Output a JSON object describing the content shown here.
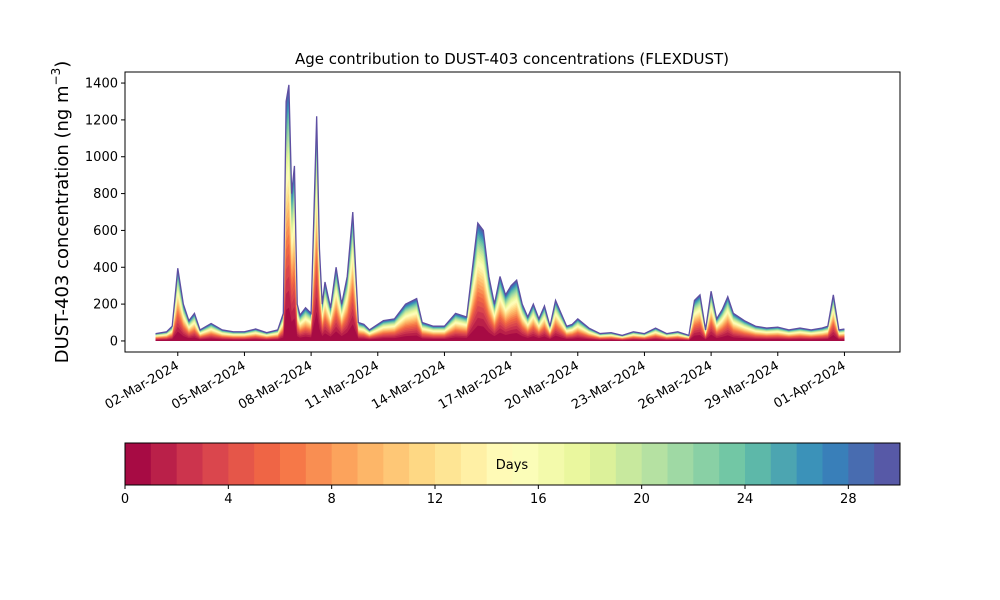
{
  "chart_data": {
    "type": "area",
    "title": "Age contribution to DUST-403 concentrations (FLEXDUST)",
    "ylabel": "DUST-403 concentration (ng m",
    "ylabel_sup": "−3",
    "ylabel_close": ")",
    "xlabel": "",
    "ylim": [
      -60,
      1460
    ],
    "xlim": [
      "2024-02-28T15:00",
      "2024-04-03T12:00"
    ],
    "y_ticks": [
      0,
      200,
      400,
      600,
      800,
      1000,
      1200,
      1400
    ],
    "x_ticks": [
      "2024-03-02",
      "2024-03-05",
      "2024-03-08",
      "2024-03-11",
      "2024-03-14",
      "2024-03-17",
      "2024-03-20",
      "2024-03-23",
      "2024-03-26",
      "2024-03-29",
      "2024-04-01"
    ],
    "x_tick_labels": [
      "02-Mar-2024",
      "05-Mar-2024",
      "08-Mar-2024",
      "11-Mar-2024",
      "14-Mar-2024",
      "17-Mar-2024",
      "20-Mar-2024",
      "23-Mar-2024",
      "26-Mar-2024",
      "29-Mar-2024",
      "01-Apr-2024"
    ],
    "stacked": true,
    "grid": false,
    "total": {
      "x": [
        "2024-03-01T00:00",
        "2024-03-01T12:00",
        "2024-03-01T18:00",
        "2024-03-02T00:00",
        "2024-03-02T06:00",
        "2024-03-02T12:00",
        "2024-03-02T18:00",
        "2024-03-03T00:00",
        "2024-03-03T12:00",
        "2024-03-04T00:00",
        "2024-03-04T12:00",
        "2024-03-05T00:00",
        "2024-03-05T12:00",
        "2024-03-06T00:00",
        "2024-03-06T12:00",
        "2024-03-06T18:00",
        "2024-03-06T21:00",
        "2024-03-07T00:00",
        "2024-03-07T03:00",
        "2024-03-07T06:00",
        "2024-03-07T09:00",
        "2024-03-07T12:00",
        "2024-03-07T18:00",
        "2024-03-08T00:00",
        "2024-03-08T06:00",
        "2024-03-08T09:00",
        "2024-03-08T12:00",
        "2024-03-08T15:00",
        "2024-03-08T21:00",
        "2024-03-09T03:00",
        "2024-03-09T09:00",
        "2024-03-09T15:00",
        "2024-03-09T21:00",
        "2024-03-10T03:00",
        "2024-03-10T09:00",
        "2024-03-10T15:00",
        "2024-03-10T21:00",
        "2024-03-11T06:00",
        "2024-03-11T18:00",
        "2024-03-12T06:00",
        "2024-03-12T18:00",
        "2024-03-13T00:00",
        "2024-03-13T12:00",
        "2024-03-14T00:00",
        "2024-03-14T12:00",
        "2024-03-15T00:00",
        "2024-03-15T12:00",
        "2024-03-15T18:00",
        "2024-03-16T00:00",
        "2024-03-16T06:00",
        "2024-03-16T12:00",
        "2024-03-16T18:00",
        "2024-03-17T00:00",
        "2024-03-17T06:00",
        "2024-03-17T12:00",
        "2024-03-17T18:00",
        "2024-03-18T00:00",
        "2024-03-18T06:00",
        "2024-03-18T12:00",
        "2024-03-18T18:00",
        "2024-03-19T00:00",
        "2024-03-19T06:00",
        "2024-03-19T12:00",
        "2024-03-19T18:00",
        "2024-03-20T00:00",
        "2024-03-20T12:00",
        "2024-03-21T00:00",
        "2024-03-21T12:00",
        "2024-03-22T00:00",
        "2024-03-22T12:00",
        "2024-03-23T00:00",
        "2024-03-23T12:00",
        "2024-03-24T00:00",
        "2024-03-24T12:00",
        "2024-03-25T00:00",
        "2024-03-25T06:00",
        "2024-03-25T12:00",
        "2024-03-25T18:00",
        "2024-03-26T00:00",
        "2024-03-26T06:00",
        "2024-03-26T12:00",
        "2024-03-26T18:00",
        "2024-03-27T00:00",
        "2024-03-27T12:00",
        "2024-03-28T00:00",
        "2024-03-28T12:00",
        "2024-03-29T00:00",
        "2024-03-29T12:00",
        "2024-03-30T00:00",
        "2024-03-30T12:00",
        "2024-03-31T00:00",
        "2024-03-31T06:00",
        "2024-03-31T12:00",
        "2024-03-31T18:00",
        "2024-04-01T00:00"
      ],
      "values": [
        40,
        50,
        80,
        395,
        200,
        110,
        150,
        60,
        95,
        60,
        50,
        50,
        65,
        45,
        60,
        150,
        1300,
        1390,
        800,
        950,
        200,
        140,
        180,
        150,
        1220,
        500,
        200,
        320,
        180,
        400,
        200,
        350,
        700,
        100,
        90,
        60,
        80,
        110,
        120,
        200,
        230,
        100,
        80,
        80,
        150,
        130,
        640,
        600,
        350,
        200,
        350,
        250,
        300,
        330,
        200,
        130,
        200,
        120,
        190,
        80,
        220,
        150,
        80,
        90,
        120,
        70,
        40,
        45,
        30,
        50,
        40,
        70,
        40,
        50,
        30,
        220,
        250,
        60,
        270,
        120,
        170,
        240,
        150,
        110,
        80,
        70,
        75,
        60,
        70,
        60,
        70,
        80,
        250,
        60,
        65
      ]
    },
    "colorbar": {
      "label": "Days",
      "min": 0,
      "max": 30,
      "ticks": [
        0,
        4,
        8,
        12,
        16,
        20,
        24,
        28
      ],
      "bins": 30,
      "colormap": "Spectral"
    }
  }
}
